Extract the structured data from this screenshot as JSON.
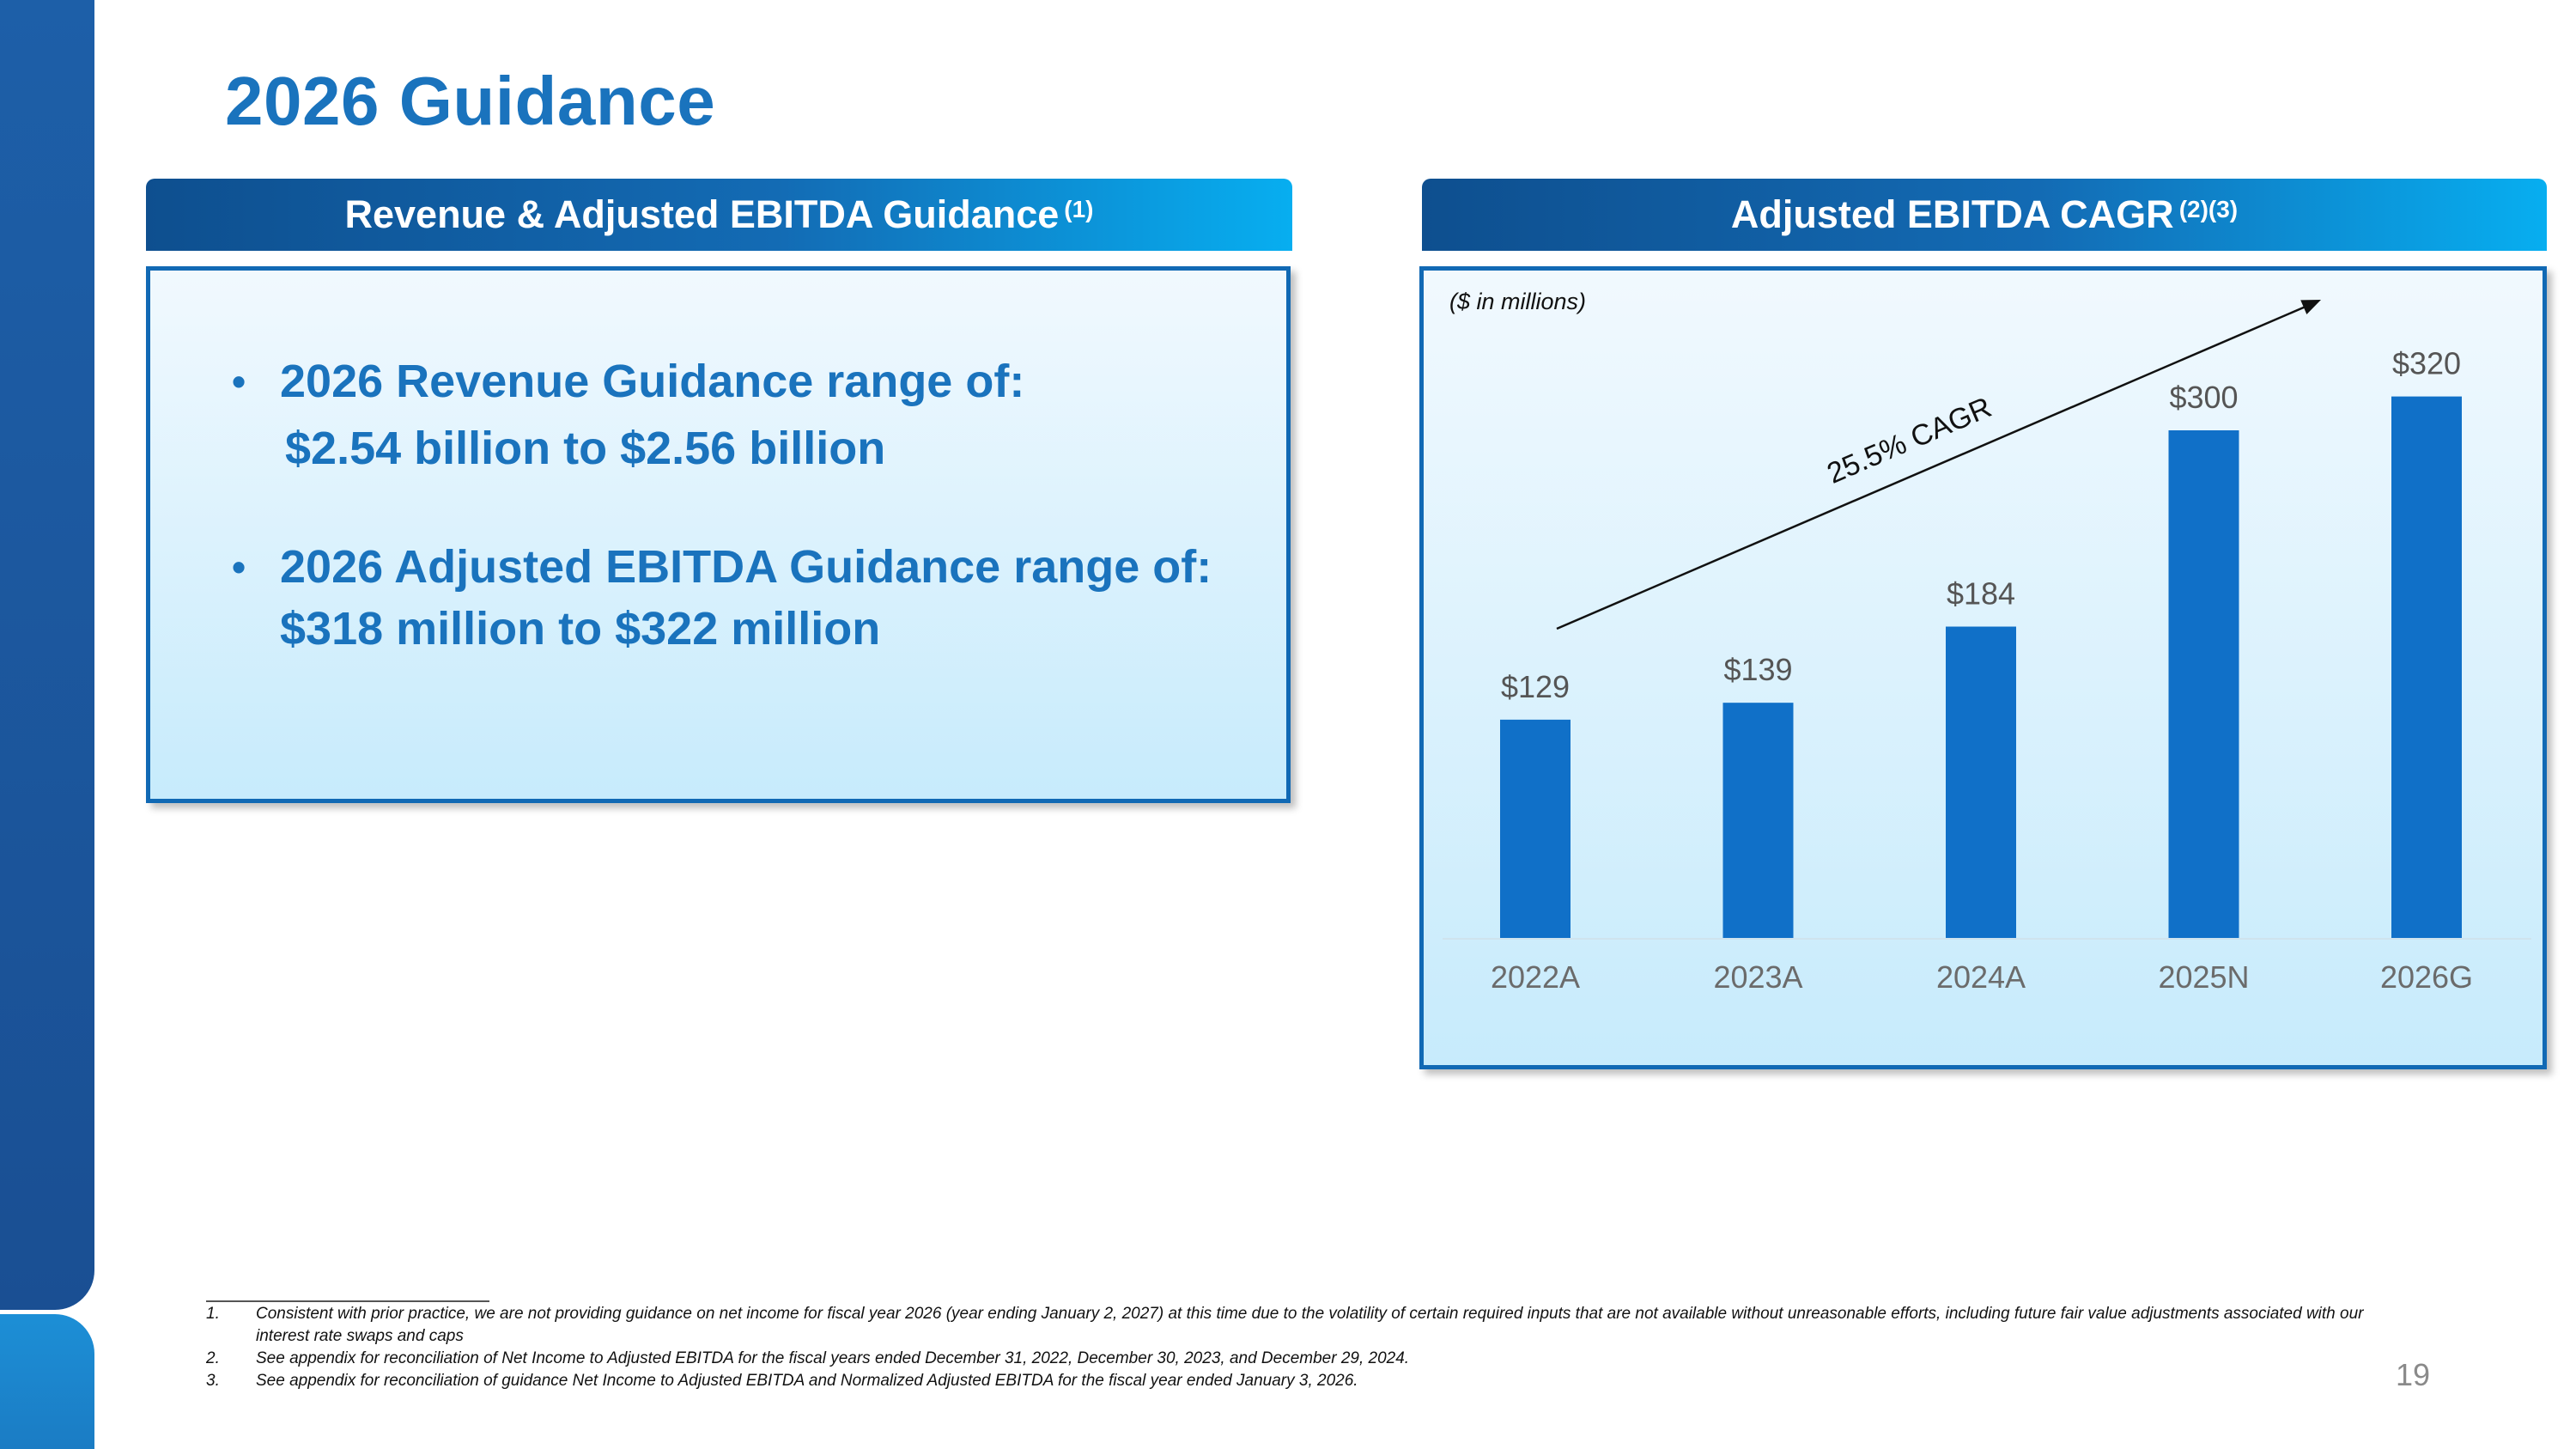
{
  "page": {
    "title": "2026 Guidance",
    "page_number": "19"
  },
  "left_panel": {
    "header": "Revenue & Adjusted EBITDA Guidance",
    "header_sup": "(1)",
    "bullets": [
      {
        "line1": "2026 Revenue Guidance range of:",
        "line2": "$2.54 billion to $2.56 billion"
      },
      {
        "line1": "2026 Adjusted EBITDA Guidance range of:",
        "line2": "$318 million to $322 million"
      }
    ]
  },
  "right_panel": {
    "header": "Adjusted EBITDA CAGR",
    "header_sup": "(2)(3)"
  },
  "chart_data": {
    "type": "bar",
    "unit_note": "($ in millions)",
    "categories": [
      "2022A",
      "2023A",
      "2024A",
      "2025N",
      "2026G"
    ],
    "values": [
      129,
      139,
      184,
      300,
      320
    ],
    "data_labels": [
      "$129",
      "$139",
      "$184",
      "$300",
      "$320"
    ],
    "annotation": "25.5% CAGR",
    "ylim": [
      0,
      340
    ],
    "grid": false,
    "bar_color": "#1070c8"
  },
  "footnotes": [
    {
      "num": "1.",
      "text": "Consistent with prior practice, we are not providing guidance on net income for fiscal year 2026 (year ending January 2, 2027) at this time due to the volatility of certain required inputs that are not available without unreasonable efforts, including future fair value adjustments associated with our interest rate swaps and caps"
    },
    {
      "num": "2.",
      "text": "See appendix for reconciliation of Net Income to Adjusted EBITDA for the fiscal years ended December 31, 2022, December 30, 2023, and December 29, 2024."
    },
    {
      "num": "3.",
      "text": "See appendix for reconciliation of guidance Net Income to Adjusted EBITDA and Normalized Adjusted EBITDA for the fiscal year ended January 3, 2026."
    }
  ],
  "colors": {
    "title": "#1a73bd",
    "panel_border": "#1169b4",
    "header_gradient_start": "#0e4f8f",
    "header_gradient_end": "#07aef0"
  }
}
